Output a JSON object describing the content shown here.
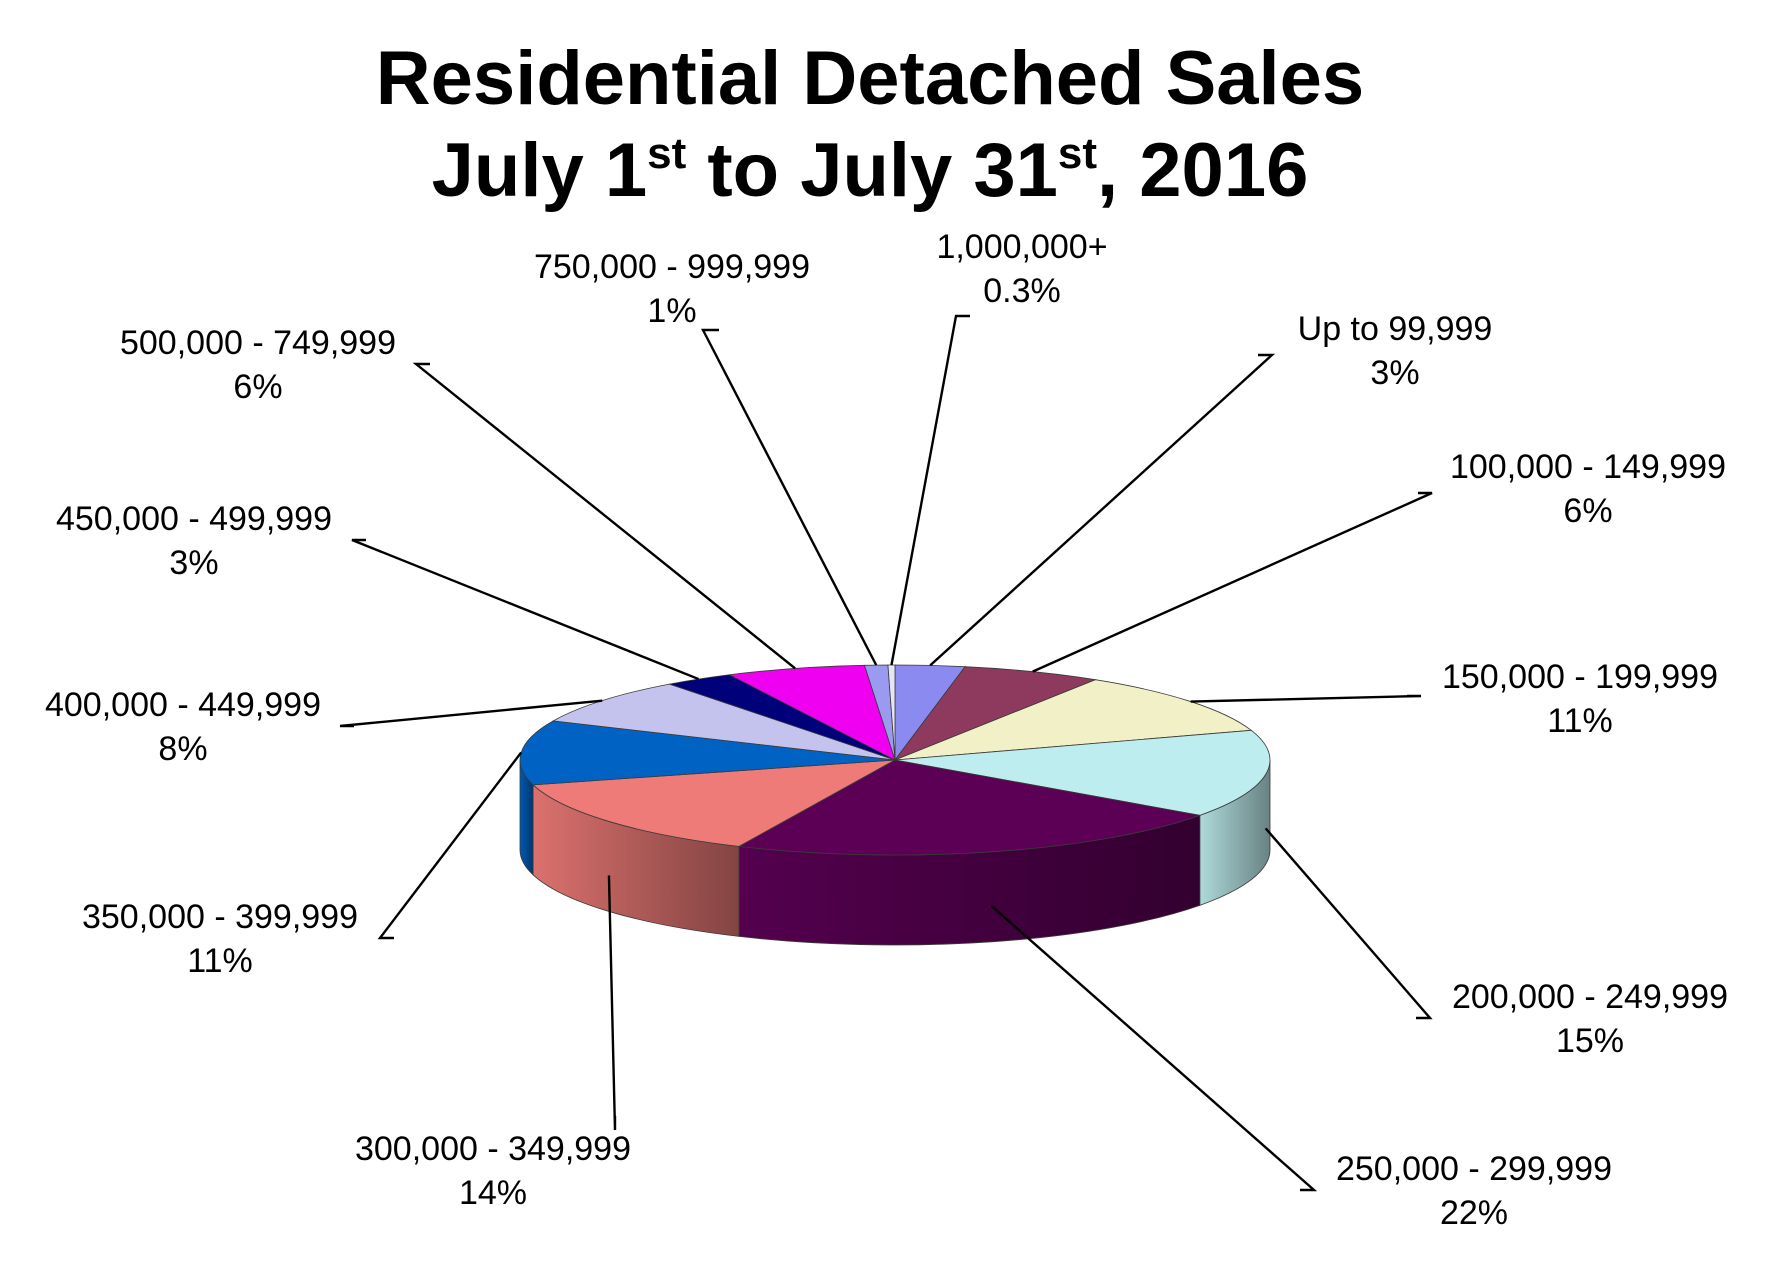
{
  "chart_data": {
    "type": "pie",
    "title": {
      "line1": "Residential Detached Sales",
      "line2_a": "July 1",
      "line2_sup1": "st",
      "line2_b": " to July 31",
      "line2_sup2": "st",
      "line2_c": ", 2016"
    },
    "start": "top",
    "direction": "clockwise",
    "slices": [
      {
        "label": "Up to 99,999",
        "value": 3,
        "percent_label": "3%",
        "color": "#8A8AF0"
      },
      {
        "label": "100,000 - 149,999",
        "value": 6,
        "percent_label": "6%",
        "color": "#8E3A5E"
      },
      {
        "label": "150,000 - 199,999",
        "value": 11,
        "percent_label": "11%",
        "color": "#F1F0C6"
      },
      {
        "label": "200,000 - 249,999",
        "value": 15,
        "percent_label": "15%",
        "color": "#BDEDEE"
      },
      {
        "label": "250,000 - 299,999",
        "value": 22,
        "percent_label": "22%",
        "color": "#5B0055"
      },
      {
        "label": "300,000 - 349,999",
        "value": 14,
        "percent_label": "14%",
        "color": "#EE7B78"
      },
      {
        "label": "350,000 - 399,999",
        "value": 11,
        "percent_label": "11%",
        "color": "#0062C2"
      },
      {
        "label": "400,000 - 449,999",
        "value": 8,
        "percent_label": "8%",
        "color": "#C3C3EE"
      },
      {
        "label": "450,000 - 499,999",
        "value": 3,
        "percent_label": "3%",
        "color": "#00007A"
      },
      {
        "label": "500,000 - 749,999",
        "value": 6,
        "percent_label": "6%",
        "color": "#F000F0"
      },
      {
        "label": "750,000 - 999,999",
        "value": 1,
        "percent_label": "1%",
        "color": "#9A9AF0"
      },
      {
        "label": "1,000,000+",
        "value": 0.3,
        "percent_label": "0.3%",
        "color": "#E5E5F5"
      }
    ]
  }
}
